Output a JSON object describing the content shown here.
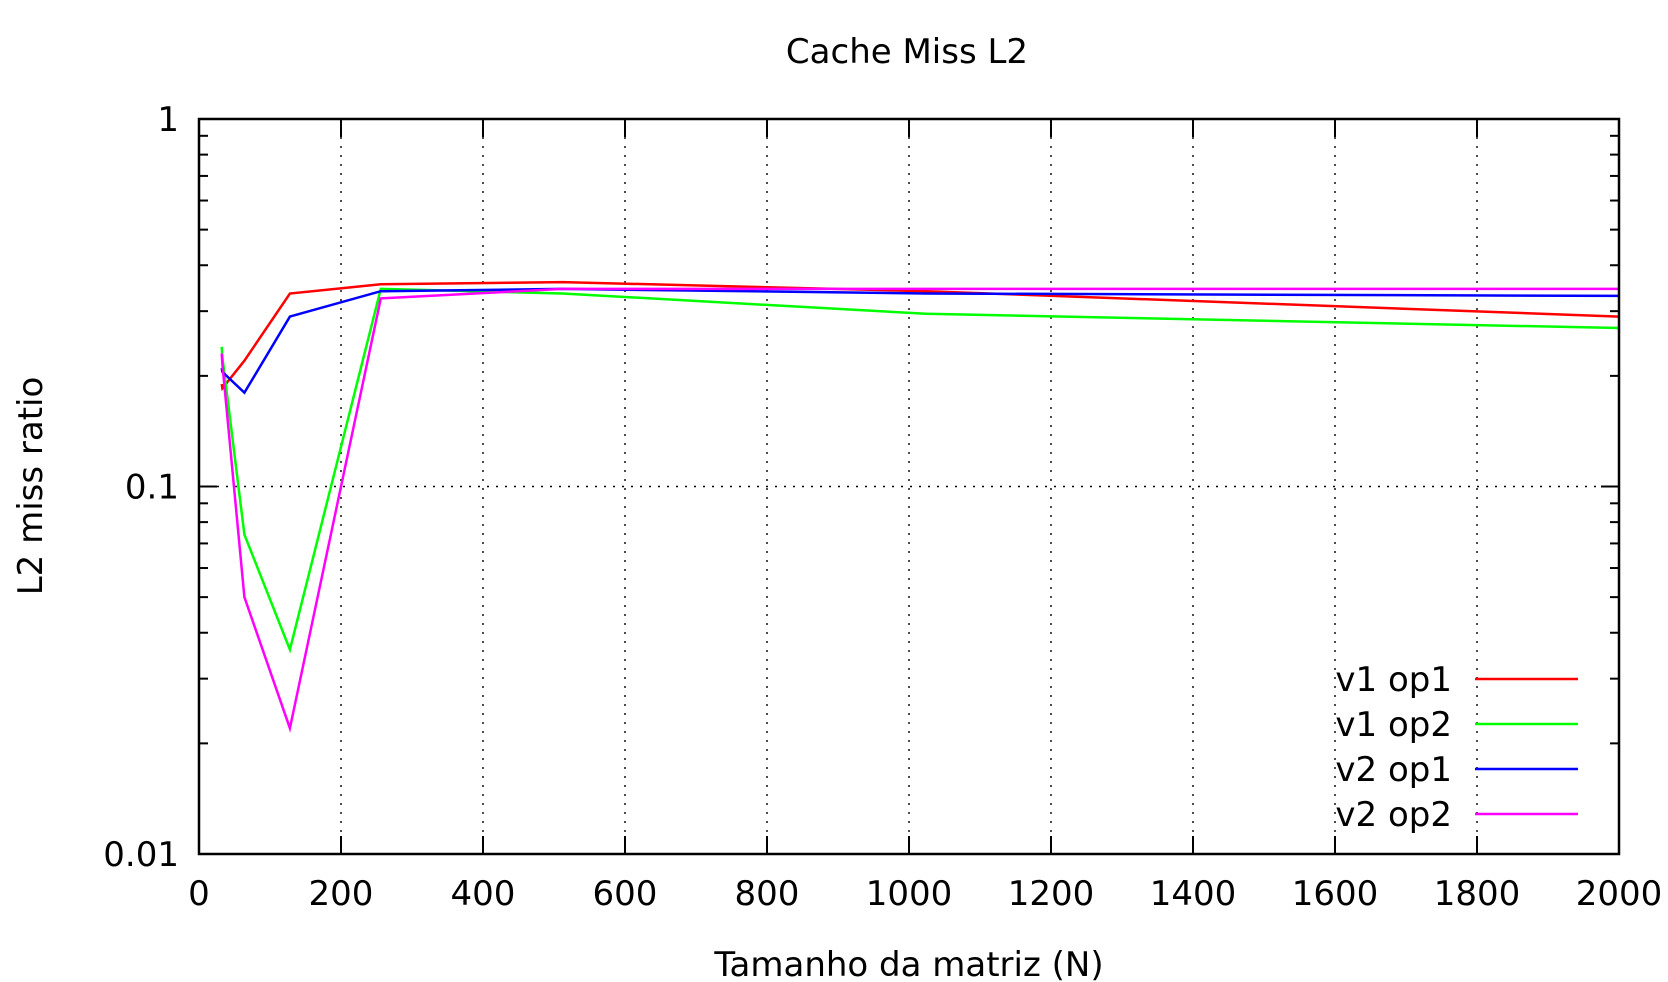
{
  "chart_data": {
    "type": "line",
    "title": "Cache Miss L2",
    "xlabel": "Tamanho da matriz (N)",
    "ylabel": "L2 miss ratio",
    "xlim": [
      0,
      2000
    ],
    "ylim": [
      0.01,
      1
    ],
    "yscale": "log",
    "x_ticks": [
      0,
      200,
      400,
      600,
      800,
      1000,
      1200,
      1400,
      1600,
      1800,
      2000
    ],
    "x_tick_labels": [
      "0",
      "200",
      "400",
      "600",
      "800",
      "1000",
      "1200",
      "1400",
      "1600",
      "1800",
      "2000"
    ],
    "y_ticks": [
      0.01,
      0.1,
      1
    ],
    "y_tick_labels": [
      "0.01",
      "0.1",
      "1"
    ],
    "grid": true,
    "legend_position": "bottom-right",
    "series": [
      {
        "name": "v1 op1",
        "color": "#ff0000",
        "x": [
          32,
          33,
          64,
          128,
          256,
          512,
          1024,
          2000
        ],
        "y": [
          0.19,
          0.185,
          0.22,
          0.335,
          0.355,
          0.36,
          0.34,
          0.29
        ]
      },
      {
        "name": "v1 op2",
        "color": "#00ff00",
        "x": [
          32,
          33,
          64,
          128,
          256,
          512,
          1024,
          2000
        ],
        "y": [
          0.24,
          0.225,
          0.074,
          0.036,
          0.345,
          0.335,
          0.295,
          0.27
        ]
      },
      {
        "name": "v2 op1",
        "color": "#0000ff",
        "x": [
          32,
          33,
          64,
          128,
          256,
          512,
          1024,
          2000
        ],
        "y": [
          0.21,
          0.205,
          0.18,
          0.29,
          0.34,
          0.345,
          0.335,
          0.33
        ]
      },
      {
        "name": "v2 op2",
        "color": "#ff00ff",
        "x": [
          32,
          33,
          64,
          128,
          256,
          512,
          1024,
          2000
        ],
        "y": [
          0.23,
          0.215,
          0.05,
          0.022,
          0.325,
          0.345,
          0.345,
          0.345
        ]
      }
    ]
  }
}
